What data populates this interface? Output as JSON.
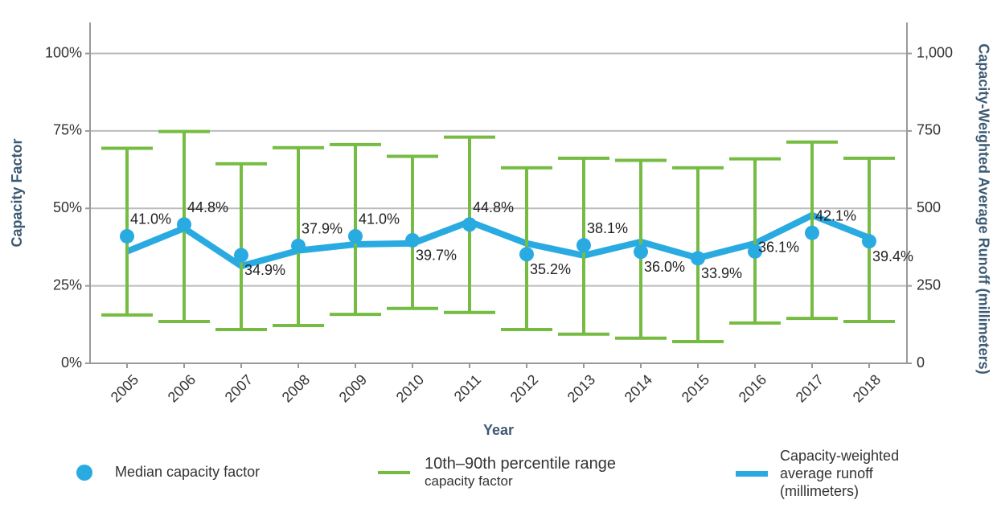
{
  "chart_data": {
    "type": "errorbar-line",
    "categories": [
      "2005",
      "2006",
      "2007",
      "2008",
      "2009",
      "2010",
      "2011",
      "2012",
      "2013",
      "2014",
      "2015",
      "2016",
      "2017",
      "2018"
    ],
    "x_label": "Year",
    "y_label": "Capacity Factor",
    "y2_label": "Capacity-Weighted Average Runoff (millimeters)",
    "ylim": [
      0,
      110
    ],
    "yticks": [
      {
        "value": 0,
        "label": "0%"
      },
      {
        "value": 25,
        "label": "25%"
      },
      {
        "value": 50,
        "label": "50%"
      },
      {
        "value": 75,
        "label": "75%"
      },
      {
        "value": 100,
        "label": "100%"
      }
    ],
    "y2lim": [
      0,
      1100
    ],
    "y2ticks": [
      0,
      250,
      500,
      750,
      {
        "value": 1000,
        "label": "1,000"
      }
    ],
    "grid": true,
    "series": [
      {
        "name": "Median capacity factor",
        "color": "#29abe2",
        "values": [
          41.0,
          44.8,
          34.9,
          37.9,
          41.0,
          39.7,
          44.8,
          35.2,
          38.1,
          36.0,
          33.9,
          36.1,
          42.1,
          39.4
        ],
        "value_labels": [
          "41.0%",
          "44.8%",
          "34.9%",
          "37.9%",
          "41.0%",
          "39.7%",
          "44.8%",
          "35.2%",
          "38.1%",
          "36.0%",
          "33.9%",
          "36.1%",
          "42.1%",
          "39.4%"
        ]
      },
      {
        "name": "10th–90th percentile range",
        "note": "capacity factor",
        "color": "#76bc43",
        "low": [
          15.6,
          13.5,
          10.9,
          12.2,
          15.8,
          17.7,
          16.4,
          10.9,
          9.4,
          8.1,
          7.0,
          13.0,
          14.5,
          13.5
        ],
        "high": [
          69.4,
          74.8,
          64.4,
          69.6,
          70.6,
          66.8,
          73.0,
          63.1,
          66.2,
          65.5,
          63.1,
          66.0,
          71.4,
          66.2
        ]
      },
      {
        "name": "Capacity-weighted average runoff (millimeters)",
        "color": "#29abe2",
        "axis": "y2",
        "values": [
          361,
          436,
          314,
          364,
          384,
          387,
          457,
          387,
          348,
          392,
          340,
          387,
          478,
          405
        ]
      }
    ]
  }
}
